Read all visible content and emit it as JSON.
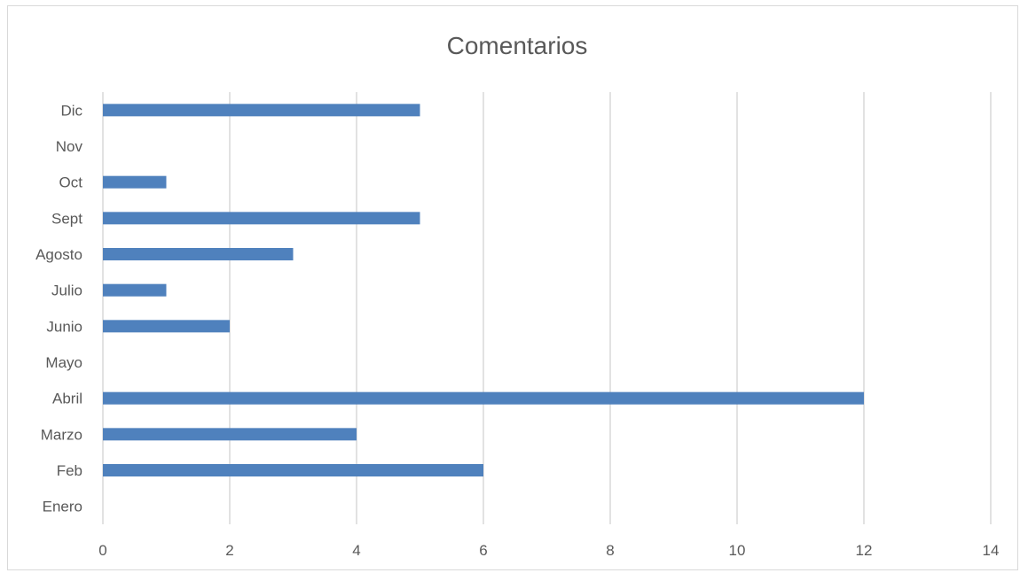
{
  "chart_data": {
    "type": "bar",
    "orientation": "horizontal",
    "title": "Comentarios",
    "xlabel": "",
    "ylabel": "",
    "categories": [
      "Enero",
      "Feb",
      "Marzo",
      "Abril",
      "Mayo",
      "Junio",
      "Julio",
      "Agosto",
      "Sept",
      "Oct",
      "Nov",
      "Dic"
    ],
    "values": [
      0,
      6,
      4,
      12,
      0,
      2,
      1,
      3,
      5,
      1,
      0,
      5
    ],
    "xlim": [
      0,
      14
    ],
    "xticks": [
      "0",
      "2",
      "4",
      "6",
      "8",
      "10",
      "12",
      "14"
    ],
    "grid": "vertical",
    "legend": "none",
    "bar_color": "#4f81bd",
    "grid_color": "#d9d9d9",
    "text_color": "#595959"
  }
}
